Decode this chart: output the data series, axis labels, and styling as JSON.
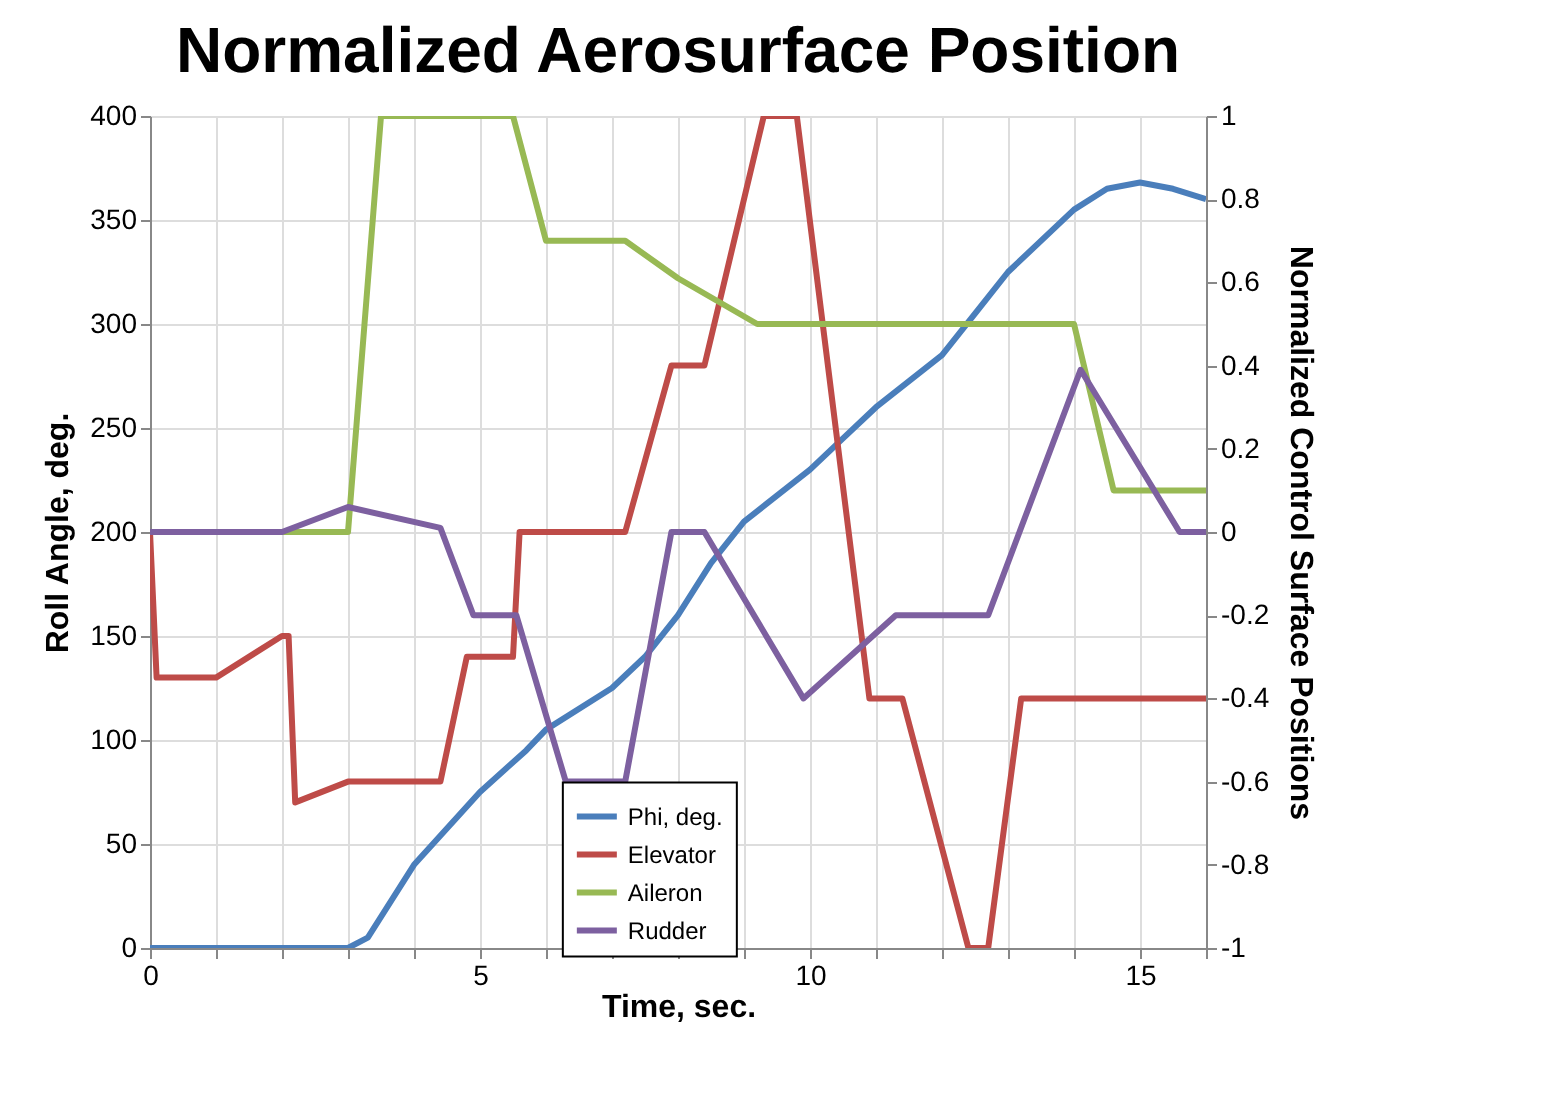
{
  "chart_data": {
    "type": "line",
    "title": "Normalized Aerosurface Position",
    "xlabel": "Time, sec.",
    "ylabel": "Roll Angle, deg.",
    "y2label": "Normalized Control Surface Positions",
    "xlim": [
      0,
      16
    ],
    "xticks": [
      0,
      {
        "value": 1,
        "label": null
      },
      {
        "value": 2,
        "label": null
      },
      {
        "value": 3,
        "label": null
      },
      {
        "value": 4,
        "label": null
      },
      5,
      {
        "value": 6,
        "label": null
      },
      {
        "value": 7,
        "label": null
      },
      {
        "value": 8,
        "label": null
      },
      {
        "value": 9,
        "label": null
      },
      10,
      {
        "value": 11,
        "label": null
      },
      {
        "value": 12,
        "label": null
      },
      {
        "value": 13,
        "label": null
      },
      {
        "value": 14,
        "label": null
      },
      15,
      {
        "value": 16,
        "label": null
      }
    ],
    "ylim": [
      0,
      400
    ],
    "yticks": [
      0,
      50,
      100,
      150,
      200,
      250,
      300,
      350,
      400
    ],
    "y2lim": [
      -1,
      1
    ],
    "y2ticks": [
      -1,
      -0.8,
      -0.6,
      -0.4,
      -0.2,
      0,
      0.2,
      0.4,
      0.6,
      0.8,
      1
    ],
    "grid": true,
    "legend": "bottom",
    "line_style": "solid",
    "series": [
      {
        "name": "Phi, deg.",
        "color": "#4a7ebb",
        "x": [
          0,
          3,
          3.3,
          4,
          5,
          5.7,
          6,
          7,
          7.5,
          8,
          8.5,
          9,
          10,
          10.5,
          11,
          12,
          12.5,
          13,
          14,
          14.5,
          15,
          15.5,
          16
        ],
        "values": [
          0,
          0,
          5,
          40,
          75,
          95,
          105,
          125,
          140,
          160,
          185,
          205,
          230,
          245,
          260,
          285,
          305,
          325,
          355,
          365,
          368,
          365,
          360
        ]
      },
      {
        "name": "Elevator",
        "color": "#be4b48",
        "axis": "y2",
        "x": [
          0,
          0.1,
          1,
          2,
          2.1,
          2.2,
          3,
          4.4,
          4.8,
          5.5,
          5.6,
          7.2,
          7.9,
          8.4,
          9.3,
          9.8,
          10.9,
          11.4,
          12.4,
          12.7,
          13.2,
          16
        ],
        "values": [
          0,
          -0.35,
          -0.35,
          -0.25,
          -0.25,
          -0.65,
          -0.6,
          -0.6,
          -0.3,
          -0.3,
          0,
          0,
          0.4,
          0.4,
          1,
          1,
          -0.4,
          -0.4,
          -1,
          -1,
          -0.4,
          -0.4
        ]
      },
      {
        "name": "Aileron",
        "color": "#98b954",
        "axis": "y2",
        "x": [
          0,
          3,
          3.5,
          5.5,
          6,
          7.2,
          8,
          9.2,
          14,
          14.6,
          16
        ],
        "values": [
          0,
          0,
          1,
          1,
          0.7,
          0.7,
          0.61,
          0.5,
          0.5,
          0.1,
          0.1
        ]
      },
      {
        "name": "Rudder",
        "color": "#7d60a0",
        "axis": "y2",
        "x": [
          0,
          2,
          3,
          4.4,
          4.9,
          5.55,
          6.3,
          7.2,
          7.9,
          8.4,
          9.9,
          11.3,
          12.7,
          14.1,
          15.6,
          16
        ],
        "values": [
          0,
          0,
          0.06,
          0.01,
          -0.2,
          -0.2,
          -0.6,
          -0.6,
          0,
          0,
          -0.4,
          -0.2,
          -0.2,
          0.39,
          0,
          0
        ]
      }
    ]
  }
}
